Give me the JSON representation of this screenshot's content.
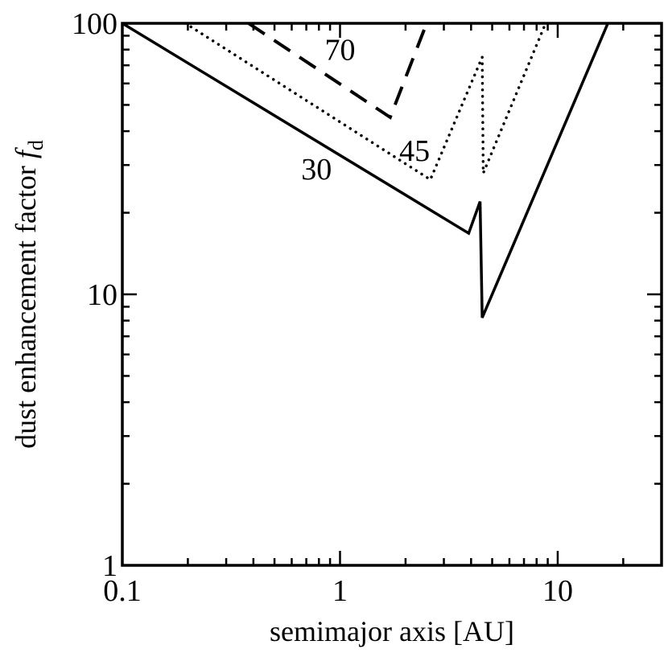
{
  "chart_data": {
    "type": "line",
    "title": "",
    "xlabel": "semimajor axis [AU]",
    "ylabel": {
      "main": "dust enhancement factor",
      "symbol": "f",
      "subscript": "d"
    },
    "xscale": "log",
    "yscale": "log",
    "xlim": [
      0.1,
      30
    ],
    "ylim": [
      1,
      100
    ],
    "xticks": [
      {
        "value": 0.1,
        "label": "0.1"
      },
      {
        "value": 1,
        "label": "1"
      },
      {
        "value": 10,
        "label": "10"
      }
    ],
    "yticks": [
      {
        "value": 1,
        "label": "1"
      },
      {
        "value": 10,
        "label": "10"
      },
      {
        "value": 100,
        "label": "100"
      }
    ],
    "grid": false,
    "series": [
      {
        "label": "30",
        "style": "solid",
        "points": [
          [
            0.1,
            100
          ],
          [
            3.9,
            16.8
          ],
          [
            4.4,
            22
          ],
          [
            4.5,
            8.2
          ],
          [
            17,
            100
          ]
        ],
        "label_pos": [
          0.78,
          29
        ]
      },
      {
        "label": "45",
        "style": "dotted",
        "points": [
          [
            0.195,
            100
          ],
          [
            2.6,
            26.5
          ],
          [
            4.5,
            75
          ],
          [
            4.55,
            28
          ],
          [
            8.8,
            100
          ]
        ],
        "label_pos": [
          2.2,
          34
        ]
      },
      {
        "label": "70",
        "style": "dashed",
        "points": [
          [
            0.38,
            100
          ],
          [
            1.7,
            45
          ],
          [
            2.5,
            100
          ]
        ],
        "label_pos": [
          1.0,
          80
        ]
      }
    ]
  }
}
